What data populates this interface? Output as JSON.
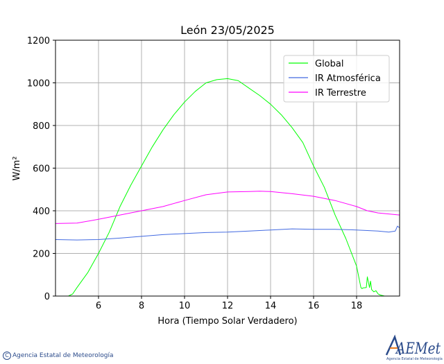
{
  "colors": {
    "global": "#00ff00",
    "ir_atmosferica": "#4169e1",
    "ir_terrestre": "#ff00ff",
    "grid": "#b0b0b0",
    "brand": "#2a4a8a",
    "logo_accent": "#e87a1e"
  },
  "footer": {
    "copyright_symbol": "C",
    "agency": "Agencia Estatal de Meteorología",
    "logo_text": "AEMet",
    "logo_subtitle": "Agencia Estatal de Meteorología"
  },
  "chart_data": {
    "type": "line",
    "title": "León 23/05/2025",
    "xlabel": "Hora (Tiempo Solar Verdadero)",
    "ylabel": "W/m²",
    "xlim": [
      4,
      20
    ],
    "ylim": [
      0,
      1200
    ],
    "xticks": [
      6,
      8,
      10,
      12,
      14,
      16,
      18
    ],
    "yticks": [
      0,
      200,
      400,
      600,
      800,
      1000,
      1200
    ],
    "grid": true,
    "legend_position": "top-right",
    "series": [
      {
        "name": "Global",
        "color": "#00ff00",
        "x": [
          4.0,
          4.6,
          4.8,
          5.0,
          5.5,
          6.0,
          6.5,
          7.0,
          7.5,
          8.0,
          8.5,
          9.0,
          9.5,
          10.0,
          10.5,
          11.0,
          11.5,
          12.0,
          12.5,
          13.0,
          13.5,
          14.0,
          14.5,
          15.0,
          15.5,
          16.0,
          16.5,
          17.0,
          17.5,
          18.0,
          18.2,
          18.25,
          18.3,
          18.45,
          18.5,
          18.6,
          18.65,
          18.7,
          18.75,
          18.8,
          18.9,
          19.0,
          19.1,
          19.3,
          19.5,
          20.0
        ],
        "y": [
          0,
          0,
          10,
          40,
          110,
          200,
          300,
          420,
          520,
          610,
          700,
          780,
          850,
          910,
          960,
          1000,
          1015,
          1020,
          1010,
          975,
          940,
          900,
          850,
          790,
          720,
          610,
          510,
          380,
          270,
          140,
          40,
          35,
          38,
          40,
          90,
          40,
          70,
          30,
          25,
          20,
          25,
          10,
          5,
          0,
          0,
          0
        ]
      },
      {
        "name": "IR Atmosférica",
        "color": "#4169e1",
        "x": [
          4.0,
          5.0,
          6.0,
          7.0,
          8.0,
          9.0,
          10.0,
          11.0,
          12.0,
          13.0,
          14.0,
          15.0,
          16.0,
          17.0,
          18.0,
          19.0,
          19.5,
          19.8,
          19.9,
          20.0
        ],
        "y": [
          265,
          263,
          265,
          272,
          280,
          288,
          293,
          298,
          300,
          305,
          310,
          315,
          313,
          313,
          310,
          305,
          300,
          305,
          328,
          320
        ]
      },
      {
        "name": "IR Terrestre",
        "color": "#ff00ff",
        "x": [
          4.0,
          5.0,
          6.0,
          7.0,
          8.0,
          9.0,
          10.0,
          11.0,
          12.0,
          13.0,
          13.5,
          14.0,
          15.0,
          16.0,
          17.0,
          18.0,
          18.5,
          19.0,
          19.5,
          20.0
        ],
        "y": [
          340,
          342,
          360,
          380,
          400,
          420,
          448,
          475,
          488,
          490,
          492,
          490,
          480,
          468,
          448,
          420,
          400,
          390,
          385,
          380
        ]
      }
    ]
  }
}
